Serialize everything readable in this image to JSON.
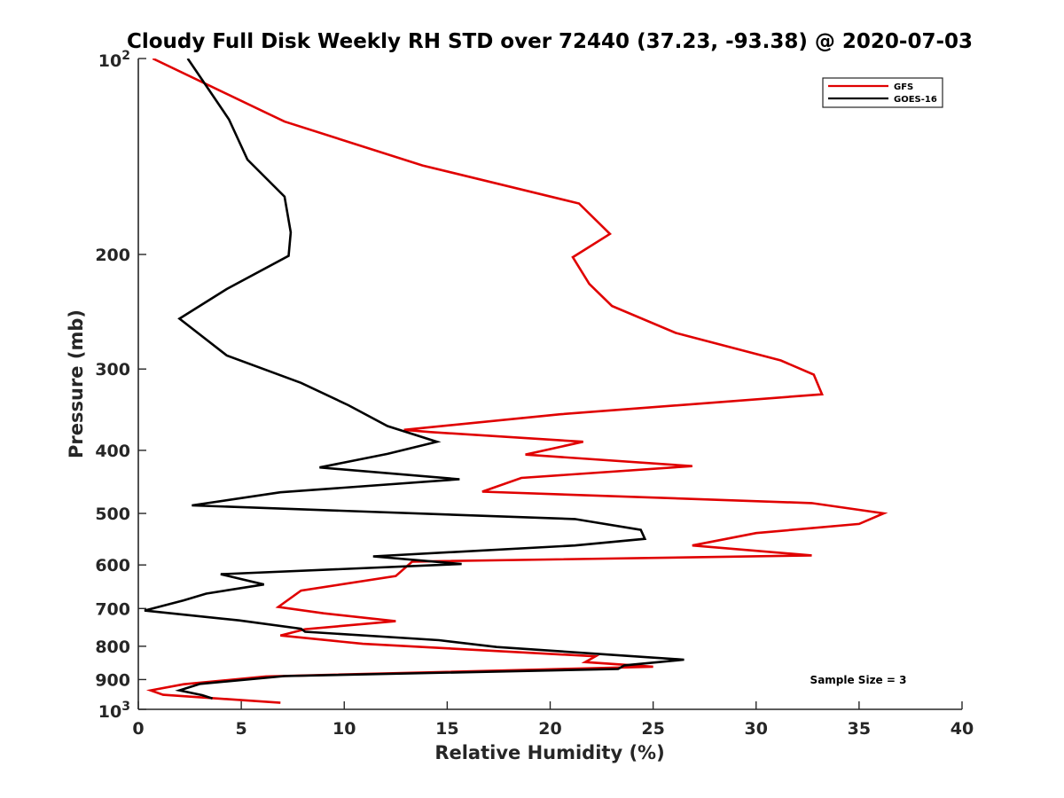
{
  "chart_data": {
    "type": "line",
    "title": "Cloudy Full Disk Weekly RH STD over 72440 (37.23, -93.38) @ 2020-07-03",
    "xlabel": "Relative Humidity (%)",
    "ylabel": "Pressure (mb)",
    "xlim": [
      0,
      40
    ],
    "ylim": [
      100,
      1000
    ],
    "yscale": "log",
    "y_reversed": true,
    "grid": false,
    "legend_position": "top-right",
    "x_ticks": [
      {
        "value": 0,
        "label": "0"
      },
      {
        "value": 5,
        "label": "5"
      },
      {
        "value": 10,
        "label": "10"
      },
      {
        "value": 15,
        "label": "15"
      },
      {
        "value": 20,
        "label": "20"
      },
      {
        "value": 25,
        "label": "25"
      },
      {
        "value": 30,
        "label": "30"
      },
      {
        "value": 35,
        "label": "35"
      },
      {
        "value": 40,
        "label": "40"
      }
    ],
    "y_ticks": [
      {
        "value": 100,
        "base": "10",
        "exp": "2"
      },
      {
        "value": 200,
        "label": "200"
      },
      {
        "value": 300,
        "label": "300"
      },
      {
        "value": 400,
        "label": "400"
      },
      {
        "value": 500,
        "label": "500"
      },
      {
        "value": 600,
        "label": "600"
      },
      {
        "value": 700,
        "label": "700"
      },
      {
        "value": 800,
        "label": "800"
      },
      {
        "value": 900,
        "label": "900"
      },
      {
        "value": 1000,
        "base": "10",
        "exp": "3"
      }
    ],
    "annotation": "Sample Size = 3",
    "series": [
      {
        "name": "GFS",
        "color": "#e00000",
        "points": [
          [
            0.7,
            100
          ],
          [
            7.1,
            125
          ],
          [
            13.8,
            146
          ],
          [
            21.4,
            167
          ],
          [
            22.9,
            186
          ],
          [
            21.1,
            202
          ],
          [
            21.9,
            222
          ],
          [
            23.0,
            240
          ],
          [
            26.1,
            264
          ],
          [
            31.2,
            291
          ],
          [
            32.8,
            306
          ],
          [
            33.2,
            328
          ],
          [
            20.5,
            352
          ],
          [
            12.9,
            372
          ],
          [
            14.2,
            375
          ],
          [
            21.6,
            388
          ],
          [
            18.8,
            406
          ],
          [
            26.9,
            423
          ],
          [
            18.6,
            441
          ],
          [
            16.7,
            463
          ],
          [
            32.7,
            482
          ],
          [
            36.2,
            500
          ],
          [
            35.0,
            519
          ],
          [
            30.0,
            536
          ],
          [
            26.9,
            560
          ],
          [
            32.7,
            580
          ],
          [
            13.3,
            593
          ],
          [
            12.5,
            624
          ],
          [
            7.9,
            657
          ],
          [
            6.8,
            696
          ],
          [
            9.0,
            712
          ],
          [
            12.5,
            732
          ],
          [
            8.1,
            753
          ],
          [
            6.9,
            770
          ],
          [
            10.9,
            793
          ],
          [
            22.2,
            829
          ],
          [
            21.7,
            846
          ],
          [
            25.0,
            860
          ],
          [
            6.2,
            890
          ],
          [
            2.2,
            915
          ],
          [
            0.6,
            935
          ],
          [
            1.2,
            950
          ],
          [
            6.9,
            977
          ]
        ]
      },
      {
        "name": "GOES-16",
        "color": "#000000",
        "points": [
          [
            2.4,
            100
          ],
          [
            4.4,
            124
          ],
          [
            5.3,
            143
          ],
          [
            7.1,
            163
          ],
          [
            7.4,
            185
          ],
          [
            7.3,
            201
          ],
          [
            4.3,
            226
          ],
          [
            2.0,
            251
          ],
          [
            4.3,
            286
          ],
          [
            7.9,
            315
          ],
          [
            10.2,
            341
          ],
          [
            12.1,
            367
          ],
          [
            14.5,
            388
          ],
          [
            12.1,
            405
          ],
          [
            8.8,
            425
          ],
          [
            15.6,
            443
          ],
          [
            6.9,
            464
          ],
          [
            2.6,
            486
          ],
          [
            21.2,
            510
          ],
          [
            24.4,
            530
          ],
          [
            24.6,
            547
          ],
          [
            21.2,
            560
          ],
          [
            11.4,
            582
          ],
          [
            15.7,
            598
          ],
          [
            4.0,
            620
          ],
          [
            6.1,
            643
          ],
          [
            3.3,
            664
          ],
          [
            2.2,
            680
          ],
          [
            0.3,
            705
          ],
          [
            4.9,
            730
          ],
          [
            7.9,
            752
          ],
          [
            8.1,
            760
          ],
          [
            14.6,
            783
          ],
          [
            17.4,
            802
          ],
          [
            26.5,
            839
          ],
          [
            23.6,
            856
          ],
          [
            23.3,
            867
          ],
          [
            7.1,
            889
          ],
          [
            3.0,
            914
          ],
          [
            2.0,
            935
          ],
          [
            3.1,
            951
          ],
          [
            3.6,
            962
          ]
        ]
      }
    ]
  }
}
